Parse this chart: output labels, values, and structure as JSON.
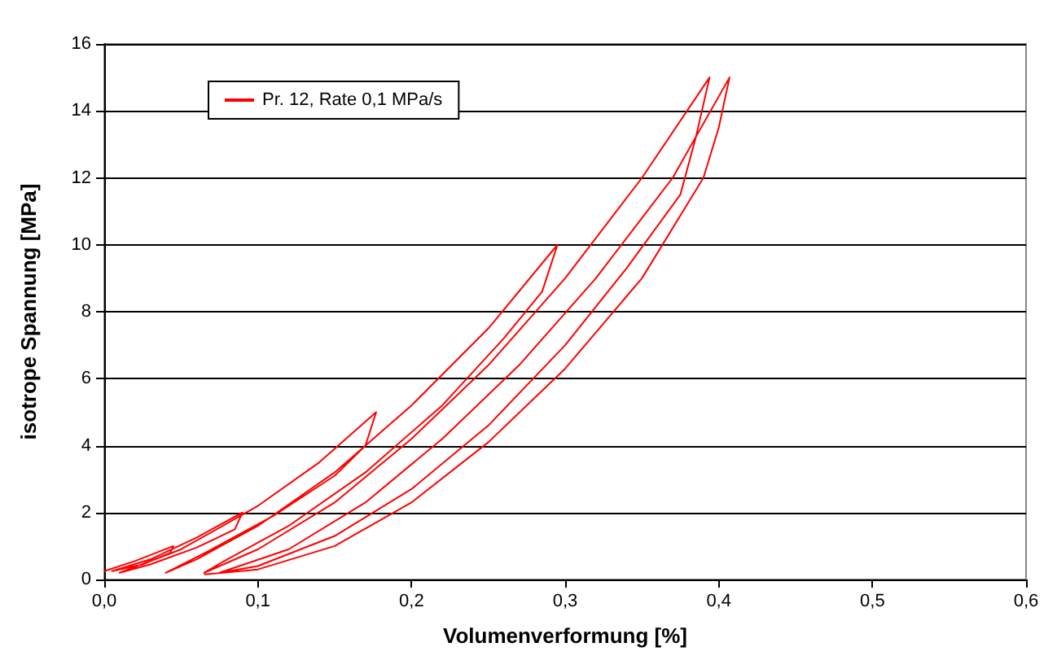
{
  "chart_data": {
    "type": "line",
    "xlabel": "Volumenverformung [%]",
    "ylabel": "isotrope Spannung [MPa]",
    "xlim": [
      0,
      0.6
    ],
    "ylim": [
      0,
      16
    ],
    "xticks": [
      {
        "value": 0,
        "label": "0,0"
      },
      {
        "value": 0.1,
        "label": "0,1"
      },
      {
        "value": 0.2,
        "label": "0,2"
      },
      {
        "value": 0.3,
        "label": "0,3"
      },
      {
        "value": 0.4,
        "label": "0,4"
      },
      {
        "value": 0.5,
        "label": "0,5"
      },
      {
        "value": 0.6,
        "label": "0,6"
      }
    ],
    "yticks": [
      0,
      2,
      4,
      6,
      8,
      10,
      12,
      14,
      16
    ],
    "grid": "y",
    "legend": "top left",
    "marker": "none",
    "line_style": "solid",
    "series": [
      {
        "name": "Pr. 12, Rate 0,1 MPa/s",
        "color": "#ff0000",
        "x": [
          0.0,
          0.02,
          0.045,
          0.043,
          0.025,
          0.005,
          0.03,
          0.06,
          0.09,
          0.085,
          0.06,
          0.03,
          0.01,
          0.05,
          0.1,
          0.14,
          0.177,
          0.17,
          0.15,
          0.11,
          0.07,
          0.04,
          0.06,
          0.1,
          0.15,
          0.2,
          0.25,
          0.295,
          0.285,
          0.26,
          0.22,
          0.17,
          0.12,
          0.08,
          0.065,
          0.1,
          0.15,
          0.2,
          0.25,
          0.3,
          0.35,
          0.394,
          0.385,
          0.375,
          0.34,
          0.3,
          0.25,
          0.2,
          0.15,
          0.1,
          0.075,
          0.12,
          0.17,
          0.22,
          0.27,
          0.32,
          0.37,
          0.407,
          0.4,
          0.39,
          0.35,
          0.3,
          0.25,
          0.2,
          0.15,
          0.1,
          0.065
        ],
        "values": [
          0.25,
          0.55,
          1.0,
          0.8,
          0.45,
          0.25,
          0.6,
          1.25,
          2.0,
          1.5,
          0.95,
          0.45,
          0.2,
          0.9,
          2.2,
          3.5,
          5.0,
          4.0,
          3.1,
          1.9,
          0.9,
          0.2,
          0.6,
          1.6,
          3.2,
          5.2,
          7.5,
          10.0,
          8.6,
          7.2,
          5.2,
          3.2,
          1.6,
          0.6,
          0.2,
          0.9,
          2.3,
          4.2,
          6.4,
          9.0,
          12.0,
          15.0,
          13.2,
          11.5,
          9.3,
          7.0,
          4.6,
          2.7,
          1.3,
          0.4,
          0.2,
          0.9,
          2.3,
          4.2,
          6.4,
          9.0,
          12.0,
          15.0,
          13.5,
          12.0,
          9.0,
          6.3,
          4.1,
          2.3,
          1.0,
          0.3,
          0.15
        ]
      }
    ]
  }
}
